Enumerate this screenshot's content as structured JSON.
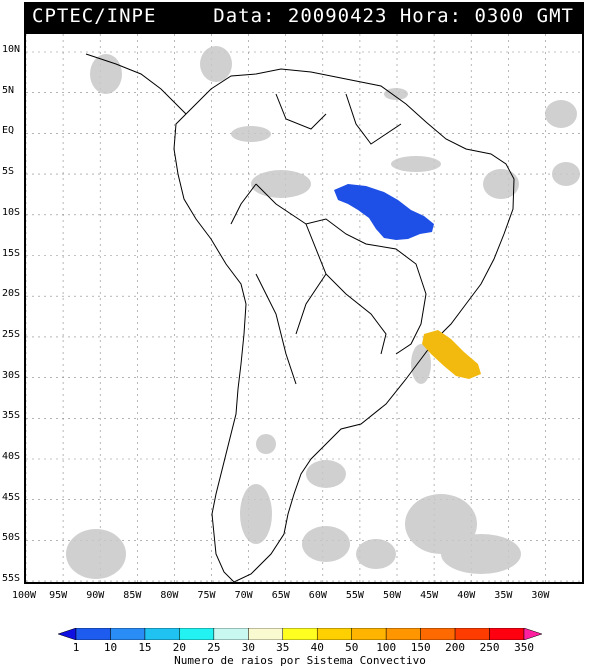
{
  "header": {
    "agency": "CPTEC/INPE",
    "date_time": "Data: 20090423 Hora: 0300 GMT"
  },
  "map": {
    "latitude_labels": [
      "10N",
      "5N",
      "EQ",
      "5S",
      "10S",
      "15S",
      "20S",
      "25S",
      "30S",
      "35S",
      "40S",
      "45S",
      "50S",
      "55S"
    ],
    "longitude_labels": [
      "100W",
      "95W",
      "90W",
      "85W",
      "80W",
      "75W",
      "70W",
      "65W",
      "60W",
      "55W",
      "50W",
      "45W",
      "40W",
      "35W",
      "30W"
    ],
    "convective_systems": [
      {
        "region": "central-north Brazil",
        "class": "1-10",
        "color": "#1e4fe6"
      },
      {
        "region": "off south-east Brazil coast",
        "class": "50-100",
        "color": "#f2b90f"
      }
    ]
  },
  "colorbar": {
    "ticks": [
      "1",
      "10",
      "15",
      "20",
      "25",
      "30",
      "35",
      "40",
      "50",
      "100",
      "150",
      "200",
      "250",
      "350"
    ],
    "colors": [
      "#1010e0",
      "#1e5cf0",
      "#2a8cf5",
      "#1fc2f0",
      "#22f2f2",
      "#c8f8f0",
      "#fafad0",
      "#ffff20",
      "#ffd000",
      "#ffb400",
      "#ff9600",
      "#ff6a00",
      "#ff3c00",
      "#ff0010",
      "#ff20a0"
    ],
    "title": "Numero de raios por Sistema Convectivo"
  }
}
